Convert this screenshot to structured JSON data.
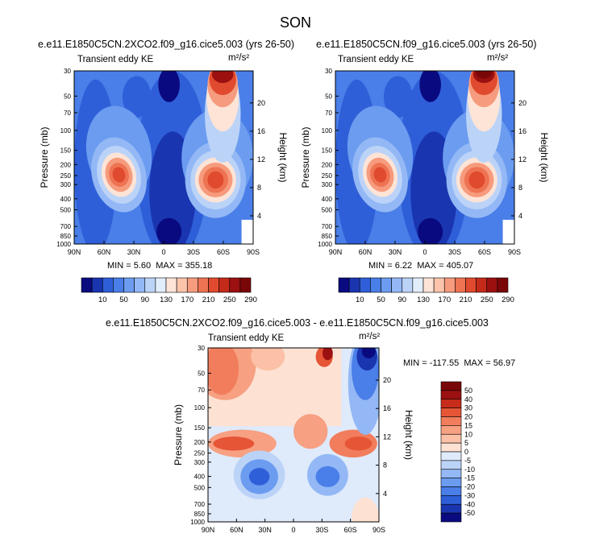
{
  "figure": {
    "title": "SON",
    "panel1": {
      "title": "e.e11.E1850C5CN.2XCO2.f09_g16.cice5.003 (yrs 26-50)",
      "field_label": "Transient eddy KE",
      "units": "m²/s²",
      "min_label": "MIN = ",
      "min_value": "5.60",
      "max_label": "MAX = ",
      "max_value": "355.18"
    },
    "panel2": {
      "title": "e.e11.E1850C5CN.f09_g16.cice5.003 (yrs 26-50)",
      "field_label": "Transient eddy KE",
      "units": "m²/s²",
      "min_label": "MIN = ",
      "min_value": "6.22",
      "max_label": "MAX = ",
      "max_value": "405.07"
    },
    "panel3": {
      "title": "e.e11.E1850C5CN.2XCO2.f09_g16.cice5.003 - e.e11.E1850C5CN.f09_g16.cice5.003",
      "field_label": "Transient eddy KE",
      "units": "m²/s²",
      "min_label": "MIN = ",
      "min_value": "-117.55",
      "max_label": "MAX = ",
      "max_value": "56.97"
    }
  },
  "chart_data": [
    {
      "type": "heatmap",
      "title": "e.e11.E1850C5CN.2XCO2.f09_g16.cice5.003 (yrs 26-50)",
      "xlabel": "",
      "ylabel": "Pressure (mb)",
      "ylabel_right": "Height (km)",
      "x_ticks": [
        "90N",
        "60N",
        "30N",
        "0",
        "30S",
        "60S",
        "90S"
      ],
      "y_ticks": [
        "30",
        "50",
        "70",
        "100",
        "150",
        "200",
        "250",
        "300",
        "400",
        "500",
        "700",
        "850",
        "1000"
      ],
      "y_ticks_right": [
        "4",
        "8",
        "12",
        "16",
        "20"
      ],
      "y_scale": "log",
      "colorbar_orientation": "horizontal",
      "colorbar_labels": [
        "10",
        "50",
        "90",
        "130",
        "170",
        "210",
        "250",
        "290"
      ],
      "min": 5.6,
      "max": 355.18
    },
    {
      "type": "heatmap",
      "title": "e.e11.E1850C5CN.f09_g16.cice5.003 (yrs 26-50)",
      "xlabel": "",
      "ylabel": "Pressure (mb)",
      "ylabel_right": "Height (km)",
      "x_ticks": [
        "90N",
        "60N",
        "30N",
        "0",
        "30S",
        "60S",
        "90S"
      ],
      "y_ticks": [
        "30",
        "50",
        "70",
        "100",
        "150",
        "200",
        "250",
        "300",
        "400",
        "500",
        "700",
        "850",
        "1000"
      ],
      "y_ticks_right": [
        "4",
        "8",
        "12",
        "16",
        "20"
      ],
      "y_scale": "log",
      "colorbar_orientation": "horizontal",
      "colorbar_labels": [
        "10",
        "50",
        "90",
        "130",
        "170",
        "210",
        "250",
        "290"
      ],
      "min": 6.22,
      "max": 405.07
    },
    {
      "type": "heatmap",
      "title": "e.e11.E1850C5CN.2XCO2.f09_g16.cice5.003 - e.e11.E1850C5CN.f09_g16.cice5.003",
      "xlabel": "",
      "ylabel": "Pressure (mb)",
      "ylabel_right": "Height (km)",
      "x_ticks": [
        "90N",
        "60N",
        "30N",
        "0",
        "30S",
        "60S",
        "90S"
      ],
      "y_ticks": [
        "30",
        "50",
        "70",
        "100",
        "150",
        "200",
        "250",
        "300",
        "400",
        "500",
        "700",
        "850",
        "1000"
      ],
      "y_ticks_right": [
        "4",
        "8",
        "12",
        "16",
        "20"
      ],
      "y_scale": "log",
      "colorbar_orientation": "vertical",
      "colorbar_labels": [
        "50",
        "40",
        "30",
        "20",
        "15",
        "10",
        "5",
        "0",
        "-5",
        "-10",
        "-15",
        "-20",
        "-30",
        "-40",
        "-50"
      ],
      "min": -117.55,
      "max": 56.97
    }
  ],
  "colors": {
    "kecolorscale": [
      "#0a0a80",
      "#1a35b0",
      "#2f5fd8",
      "#4a7ee8",
      "#6b9cf0",
      "#93b8f5",
      "#bcd3f8",
      "#e2edfb",
      "#fde4d6",
      "#fbc4ab",
      "#f69b7d",
      "#ee7352",
      "#e04a2e",
      "#c42a1a",
      "#9b1010",
      "#7a0707"
    ],
    "diffcolorscale": [
      "#0a0a80",
      "#1a35b0",
      "#2f5fd8",
      "#4a7ee8",
      "#6b9cf0",
      "#93b8f5",
      "#bcd3f8",
      "#dfeafb",
      "#fde2d3",
      "#fbc0a6",
      "#f7a082",
      "#f17d5c",
      "#e55536",
      "#c82c1a",
      "#9b1010",
      "#7a0707"
    ]
  }
}
